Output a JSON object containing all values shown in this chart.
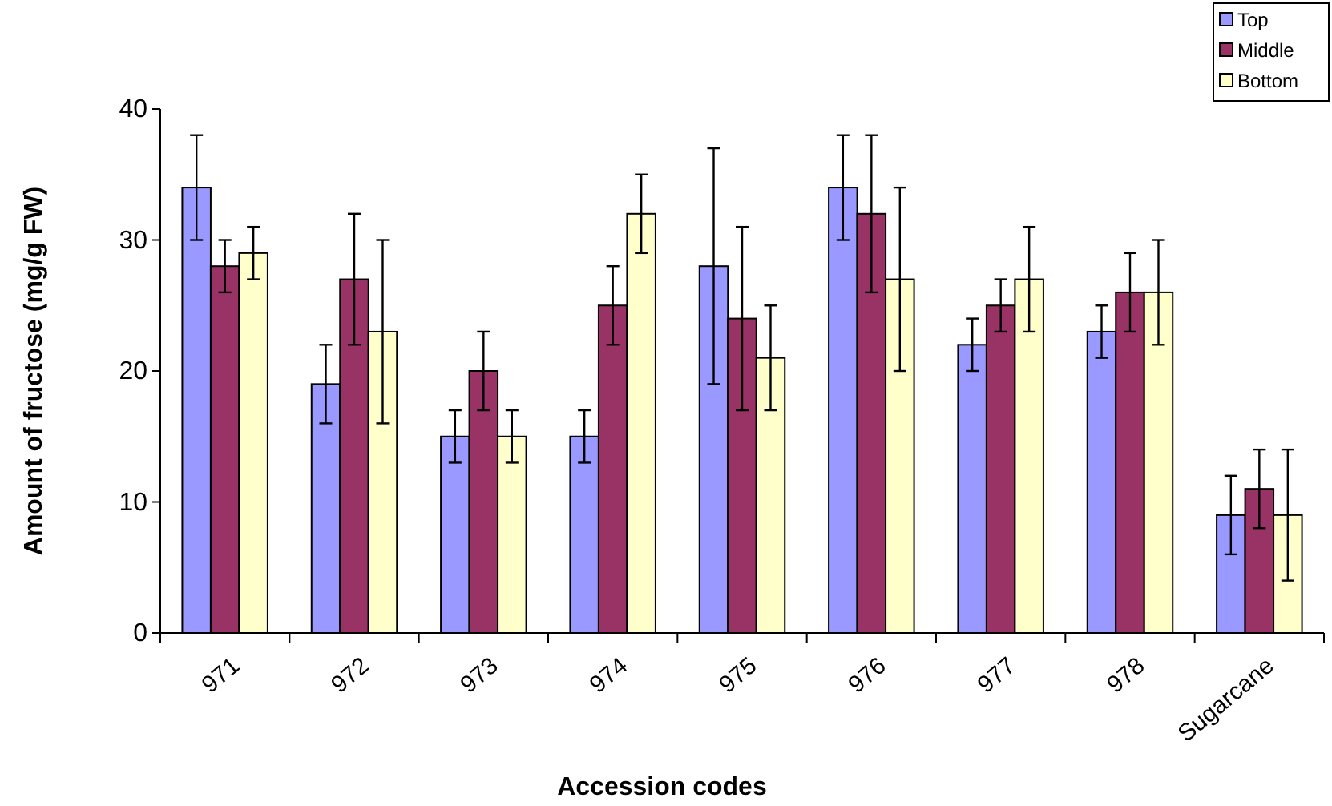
{
  "chart_data": {
    "type": "bar",
    "xlabel": "Accession codes",
    "ylabel": "Amount of fructose (mg/g FW)",
    "categories": [
      "971",
      "972",
      "973",
      "974",
      "975",
      "976",
      "977",
      "978",
      "Sugarcane"
    ],
    "series": [
      {
        "name": "Top",
        "color": "#9999ff",
        "values": [
          34,
          19,
          15,
          15,
          28,
          34,
          22,
          23,
          9
        ],
        "errors": [
          4,
          3,
          2,
          2,
          9,
          4,
          2,
          2,
          3
        ]
      },
      {
        "name": "Middle",
        "color": "#993366",
        "values": [
          28,
          27,
          20,
          25,
          24,
          32,
          25,
          26,
          11
        ],
        "errors": [
          2,
          5,
          3,
          3,
          7,
          6,
          2,
          3,
          3
        ]
      },
      {
        "name": "Bottom",
        "color": "#ffffcc",
        "values": [
          29,
          23,
          15,
          32,
          21,
          27,
          27,
          26,
          9
        ],
        "errors": [
          2,
          7,
          2,
          3,
          4,
          7,
          4,
          4,
          5
        ]
      }
    ],
    "ylim": [
      0,
      40
    ],
    "yticks": [
      0,
      10,
      20,
      30,
      40
    ],
    "grid": false,
    "legend": "top right"
  }
}
